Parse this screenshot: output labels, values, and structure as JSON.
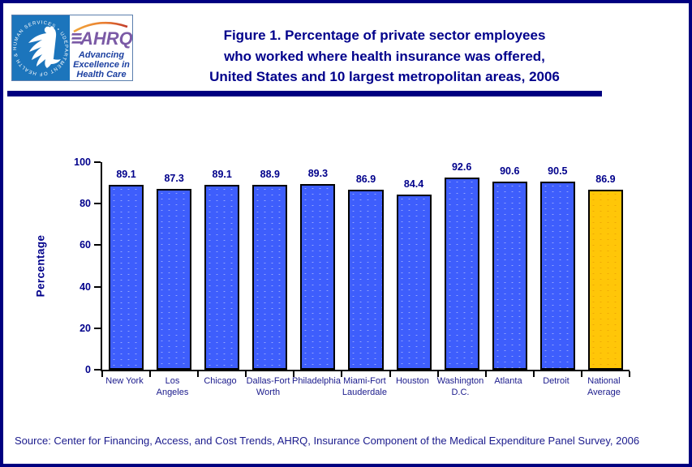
{
  "header": {
    "title_lines": [
      "Figure 1. Percentage of private sector employees",
      "who worked where health insurance was offered,",
      "United States and 10 largest metropolitan areas, 2006"
    ],
    "logo": {
      "seal_ring_text": "DEPARTMENT OF HEALTH & HUMAN SERVICES • USA",
      "wordmark": "AHRQ",
      "tagline_lines": [
        "Advancing",
        "Excellence in",
        "Health Care"
      ]
    }
  },
  "chart_data": {
    "type": "bar",
    "title": "Figure 1. Percentage of private sector employees who worked where health insurance was offered, United States and 10 largest metropolitan areas, 2006",
    "xlabel": "",
    "ylabel": "Percentage",
    "ylim": [
      0,
      100
    ],
    "yticks": [
      0,
      20,
      40,
      60,
      80,
      100
    ],
    "grid": false,
    "legend": "none",
    "value_labels_shown": true,
    "categories": [
      "New York",
      "Los Angeles",
      "Chicago",
      "Dallas-Fort Worth",
      "Philadelphia",
      "Miami-Fort Lauderdale",
      "Houston",
      "Washington D.C.",
      "Atlanta",
      "Detroit",
      "National Average"
    ],
    "category_label_lines": [
      [
        "New York"
      ],
      [
        "Los",
        "Angeles"
      ],
      [
        "Chicago"
      ],
      [
        "Dallas-Fort",
        "Worth"
      ],
      [
        "Philadelphia"
      ],
      [
        "Miami-Fort",
        "Lauderdale"
      ],
      [
        "Houston"
      ],
      [
        "Washington",
        "D.C."
      ],
      [
        "Atlanta"
      ],
      [
        "Detroit"
      ],
      [
        "National",
        "Average"
      ]
    ],
    "values": [
      89.1,
      87.3,
      89.1,
      88.9,
      89.3,
      86.9,
      84.4,
      92.6,
      90.6,
      90.5,
      86.9
    ],
    "bar_color_keys": [
      "blue",
      "blue",
      "blue",
      "blue",
      "blue",
      "blue",
      "blue",
      "blue",
      "blue",
      "blue",
      "gold"
    ],
    "palette": {
      "blue": "#3E5EFC",
      "gold": "#FFC608"
    }
  },
  "colors": {
    "page_border": "#000080",
    "header_rule": "#000080",
    "navy_text": "#00008B",
    "bar_blue": "#3E5EFC",
    "bar_gold": "#FFC608",
    "seal_blue": "#1C75BC",
    "ahrq_purple": "#7B5AA6"
  },
  "footer": {
    "source": "Source: Center for Financing, Access, and Cost Trends, AHRQ, Insurance Component of the Medical Expenditure Panel Survey, 2006"
  }
}
